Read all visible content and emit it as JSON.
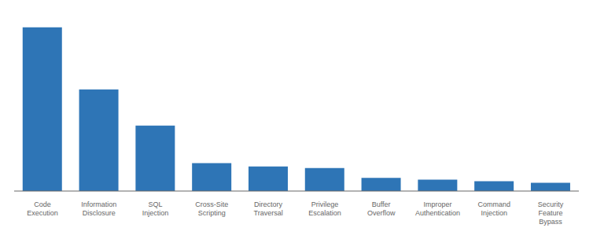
{
  "chart_data": {
    "type": "bar",
    "categories": [
      "Code Execution",
      "Information Disclosure",
      "SQL Injection",
      "Cross-Site Scripting",
      "Directory Traversal",
      "Privilege Escalation",
      "Buffer Overflow",
      "Improper Authentication",
      "Command Injection",
      "Security Feature Bypass"
    ],
    "values": [
      100,
      62,
      40,
      17,
      15,
      14,
      8,
      7,
      6,
      5
    ],
    "color": "#2e75b6",
    "ylim": [
      0,
      108
    ],
    "tick_labels": "x"
  }
}
